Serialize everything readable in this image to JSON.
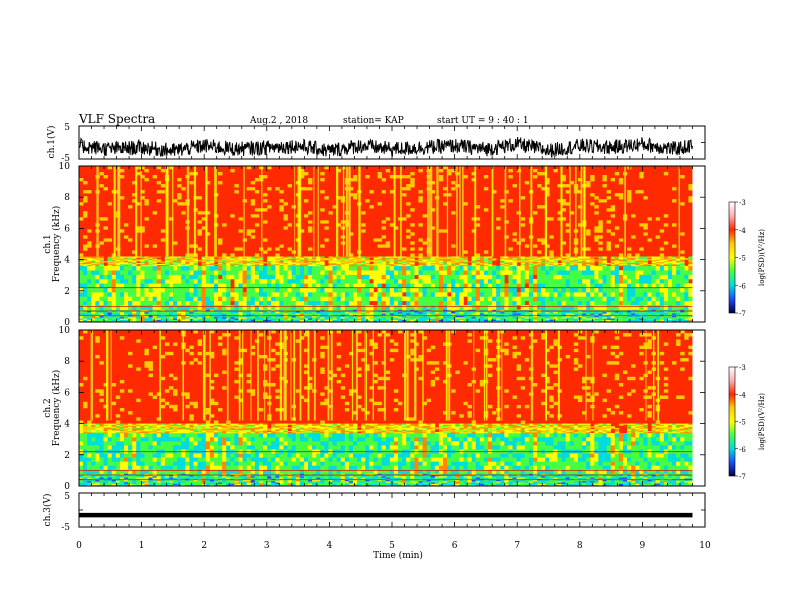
{
  "header": {
    "title": "VLF Spectra",
    "date": "Aug.2 , 2018",
    "station": "station= KAP",
    "start": "start UT = 9 : 40 : 1"
  },
  "colorbar": {
    "label": "log(PSD)(V²/Hz)",
    "ticks": [
      "-3",
      "-4",
      "-5",
      "-6",
      "-7"
    ],
    "colors": [
      "#ffffff",
      "#ffb0b0",
      "#ff2a00",
      "#ffcc00",
      "#ffff00",
      "#44ff44",
      "#00dddd",
      "#1a4cff",
      "#000044"
    ]
  },
  "chart_data": [
    {
      "type": "line",
      "panel": "ch1-waveform",
      "ylabel": "ch.1(V)",
      "ylim": [
        -5,
        5
      ],
      "yticks": [
        "5",
        "-5"
      ],
      "xlim": [
        0,
        10
      ],
      "x": [
        0,
        0.5,
        1,
        1.5,
        2,
        2.5,
        3,
        3.5,
        4,
        4.5,
        5,
        5.5,
        6,
        6.5,
        7,
        7.5,
        8,
        8.5,
        9,
        9.5,
        9.8
      ],
      "values": [
        -1,
        -2,
        -1.5,
        -2.5,
        -1,
        -2,
        -1.5,
        -1,
        -2.5,
        -1,
        -2,
        -1.5,
        -1,
        -2,
        -0.5,
        -2.5,
        -1,
        -1.5,
        -0.5,
        -2,
        -1
      ]
    },
    {
      "type": "heatmap",
      "panel": "ch1-spectrogram",
      "ylabel": "ch.1 Frequency (kHz)",
      "ylim": [
        0,
        10
      ],
      "yticks": [
        "0",
        "2",
        "4",
        "6",
        "8",
        "10"
      ],
      "xlim": [
        0,
        9.8
      ],
      "bands": [
        {
          "from": 0,
          "to": 0.8,
          "level": -5.5
        },
        {
          "from": 0.8,
          "to": 3.6,
          "level": -5.2
        },
        {
          "from": 3.6,
          "to": 4.2,
          "level": -4.6
        },
        {
          "from": 4.2,
          "to": 10,
          "level": -3.7
        }
      ]
    },
    {
      "type": "heatmap",
      "panel": "ch2-spectrogram",
      "ylabel": "ch.2 Frequency (kHz)",
      "ylim": [
        0,
        10
      ],
      "yticks": [
        "0",
        "2",
        "4",
        "6",
        "8",
        "10"
      ],
      "xlim": [
        0,
        9.8
      ],
      "bands": [
        {
          "from": 0,
          "to": 0.8,
          "level": -5.5
        },
        {
          "from": 0.8,
          "to": 3.4,
          "level": -5.4
        },
        {
          "from": 3.4,
          "to": 4.0,
          "level": -4.6
        },
        {
          "from": 4.0,
          "to": 10,
          "level": -3.7
        }
      ]
    },
    {
      "type": "line",
      "panel": "ch3-waveform",
      "ylabel": "ch.3(V)",
      "ylim": [
        -5,
        5
      ],
      "yticks": [
        "5",
        "-5"
      ],
      "xlim": [
        0,
        10
      ],
      "x": [
        0,
        9.8
      ],
      "values": [
        -1.5,
        -1.5
      ]
    }
  ],
  "xaxis": {
    "label": "Time (min)",
    "ticks": [
      "0",
      "1",
      "2",
      "3",
      "4",
      "5",
      "6",
      "7",
      "8",
      "9",
      "10"
    ]
  }
}
